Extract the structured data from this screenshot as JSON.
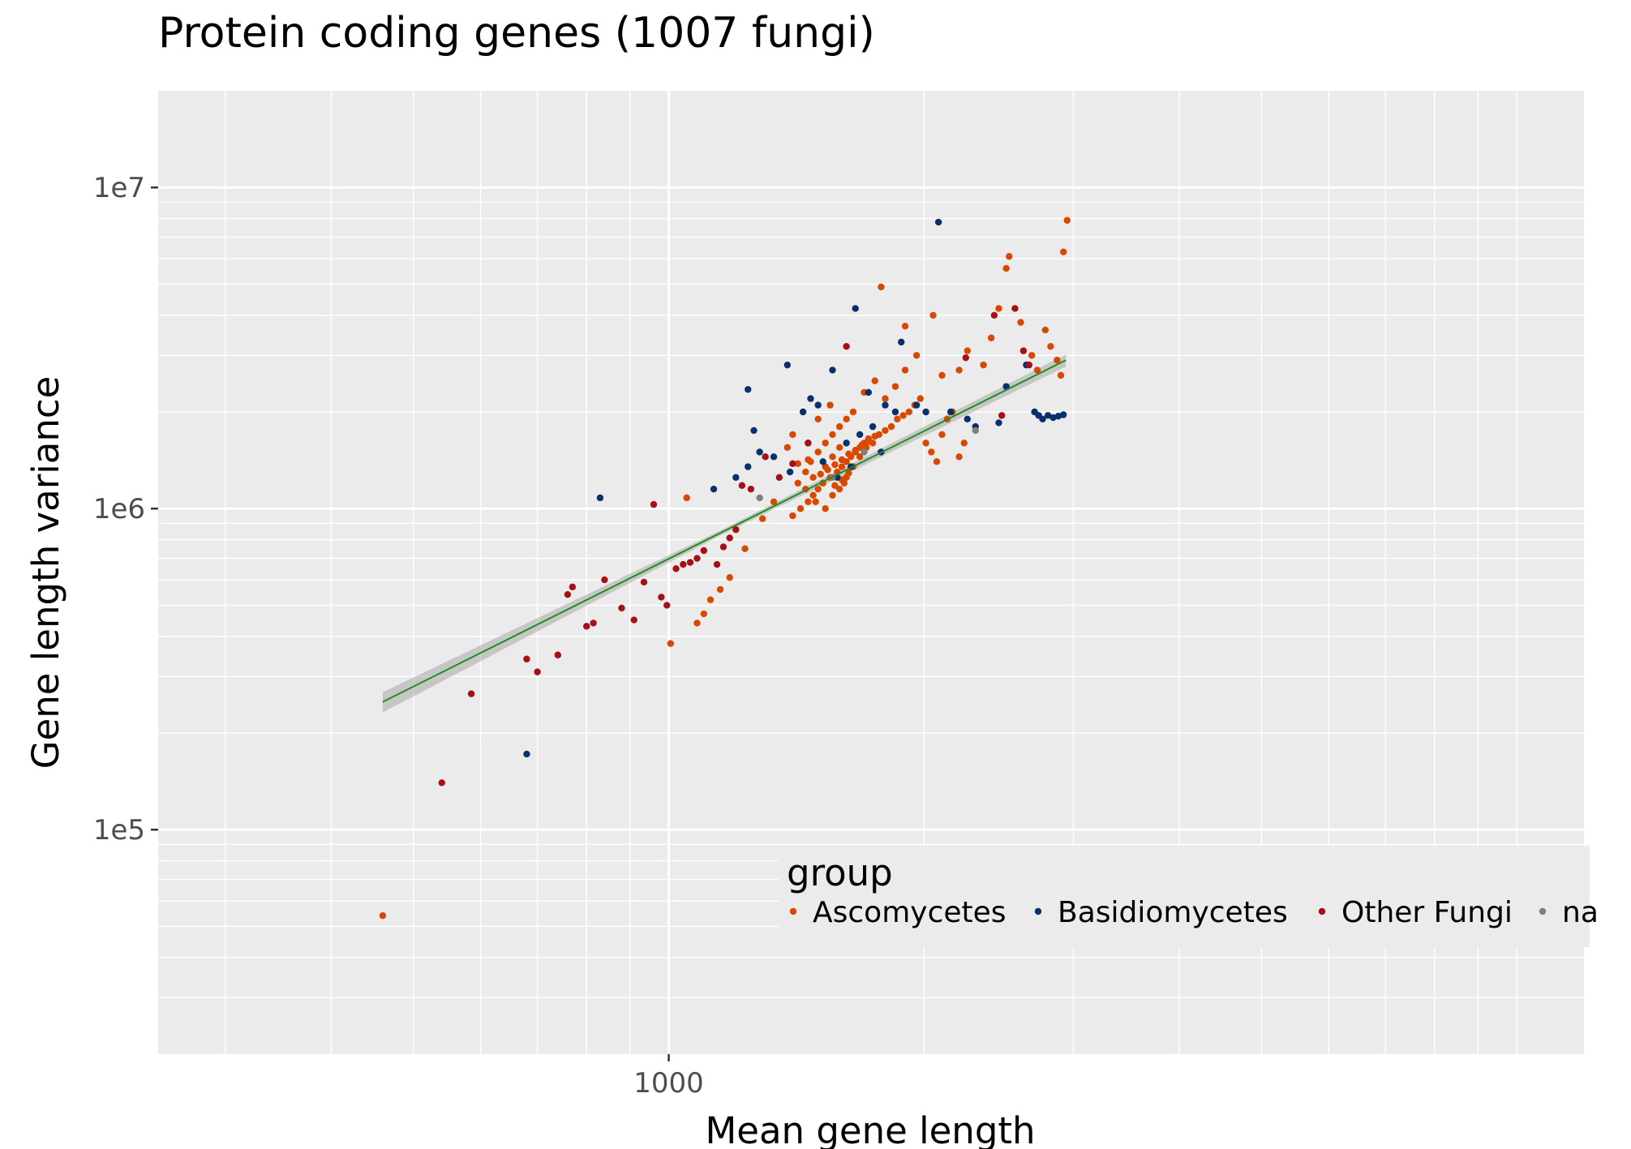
{
  "chart_data": {
    "type": "scatter",
    "title": "Protein coding genes (1007 fungi)",
    "xlabel": "Mean gene length",
    "ylabel": "Gene length variance",
    "x_scale": "log",
    "y_scale": "log",
    "xlim": [
      250,
      12000
    ],
    "ylim": [
      20000,
      20000000
    ],
    "x_ticks": [
      {
        "value": 1000,
        "label": "1000"
      }
    ],
    "y_ticks": [
      {
        "value": 10000000,
        "label": "1e7"
      },
      {
        "value": 1000000,
        "label": "1e6"
      },
      {
        "value": 100000,
        "label": "1e5"
      }
    ],
    "grid": true,
    "legend": {
      "title": "group",
      "position": "bottom-center-inside"
    },
    "trend_line": {
      "x_start": 460,
      "y_start": 250000,
      "x_end": 2940,
      "y_end": 2900000,
      "color": "#228b22",
      "ci_band": true
    },
    "series": [
      {
        "name": "Ascomycetes",
        "color": "#d94801",
        "points": [
          [
            460,
            54000
          ],
          [
            1005,
            380000
          ],
          [
            1050,
            1080000
          ],
          [
            1080,
            440000
          ],
          [
            1100,
            470000
          ],
          [
            1120,
            520000
          ],
          [
            1150,
            560000
          ],
          [
            1180,
            610000
          ],
          [
            1230,
            750000
          ],
          [
            1290,
            930000
          ],
          [
            1330,
            1050000
          ],
          [
            1400,
            950000
          ],
          [
            1430,
            1000000
          ],
          [
            1460,
            1050000
          ],
          [
            1480,
            1100000
          ],
          [
            1500,
            1150000
          ],
          [
            1520,
            1200000
          ],
          [
            1550,
            1250000
          ],
          [
            1580,
            1300000
          ],
          [
            1600,
            1350000
          ],
          [
            1620,
            1400000
          ],
          [
            1640,
            1450000
          ],
          [
            1660,
            1500000
          ],
          [
            1680,
            1550000
          ],
          [
            1700,
            1600000
          ],
          [
            1720,
            1650000
          ],
          [
            1420,
            1200000
          ],
          [
            1450,
            1300000
          ],
          [
            1470,
            1400000
          ],
          [
            1500,
            1500000
          ],
          [
            1530,
            1600000
          ],
          [
            1560,
            1700000
          ],
          [
            1590,
            1800000
          ],
          [
            1620,
            1900000
          ],
          [
            1650,
            2000000
          ],
          [
            1450,
            1150000
          ],
          [
            1490,
            1050000
          ],
          [
            1530,
            1000000
          ],
          [
            1560,
            1100000
          ],
          [
            1590,
            1150000
          ],
          [
            1610,
            1200000
          ],
          [
            1530,
            1350000
          ],
          [
            1560,
            1450000
          ],
          [
            1590,
            1550000
          ],
          [
            1620,
            1250000
          ],
          [
            1650,
            1350000
          ],
          [
            1680,
            1450000
          ],
          [
            1710,
            1550000
          ],
          [
            1740,
            1600000
          ],
          [
            1770,
            1700000
          ],
          [
            1800,
            1750000
          ],
          [
            1830,
            1800000
          ],
          [
            1860,
            1900000
          ],
          [
            1890,
            1950000
          ],
          [
            1920,
            2000000
          ],
          [
            1950,
            2100000
          ],
          [
            1980,
            2200000
          ],
          [
            2010,
            1600000
          ],
          [
            2040,
            1500000
          ],
          [
            2070,
            1400000
          ],
          [
            2100,
            1700000
          ],
          [
            2130,
            1900000
          ],
          [
            2160,
            2000000
          ],
          [
            2200,
            1450000
          ],
          [
            2230,
            1600000
          ],
          [
            1700,
            2300000
          ],
          [
            1750,
            2500000
          ],
          [
            1800,
            2200000
          ],
          [
            1850,
            2400000
          ],
          [
            1900,
            2700000
          ],
          [
            1960,
            3000000
          ],
          [
            2100,
            2600000
          ],
          [
            2200,
            2700000
          ],
          [
            2250,
            3100000
          ],
          [
            2350,
            2800000
          ],
          [
            2400,
            3400000
          ],
          [
            2450,
            4200000
          ],
          [
            2500,
            5600000
          ],
          [
            2520,
            6100000
          ],
          [
            2600,
            3800000
          ],
          [
            2680,
            3000000
          ],
          [
            2720,
            2700000
          ],
          [
            2780,
            3600000
          ],
          [
            2820,
            3200000
          ],
          [
            2870,
            2900000
          ],
          [
            2900,
            2600000
          ],
          [
            2920,
            6300000
          ],
          [
            2950,
            7900000
          ],
          [
            1780,
            4900000
          ],
          [
            1900,
            3700000
          ],
          [
            2050,
            4000000
          ],
          [
            1480,
            1250000
          ],
          [
            1510,
            1280000
          ],
          [
            1540,
            1320000
          ],
          [
            1570,
            1370000
          ],
          [
            1600,
            1420000
          ],
          [
            1630,
            1480000
          ],
          [
            1660,
            1520000
          ],
          [
            1690,
            1580000
          ],
          [
            1720,
            1620000
          ],
          [
            1750,
            1680000
          ],
          [
            1570,
            1180000
          ],
          [
            1600,
            1230000
          ],
          [
            1630,
            1290000
          ],
          [
            1420,
            1380000
          ],
          [
            1460,
            1420000
          ],
          [
            1380,
            1550000
          ],
          [
            1400,
            1700000
          ],
          [
            1500,
            1900000
          ],
          [
            1550,
            2100000
          ]
        ]
      },
      {
        "name": "Basidiomycetes",
        "color": "#08306b",
        "points": [
          [
            830,
            1080000
          ],
          [
            680,
            172000
          ],
          [
            1130,
            1150000
          ],
          [
            1200,
            1250000
          ],
          [
            1240,
            1350000
          ],
          [
            1280,
            1500000
          ],
          [
            1260,
            1750000
          ],
          [
            1240,
            2350000
          ],
          [
            1380,
            2800000
          ],
          [
            1440,
            2000000
          ],
          [
            1470,
            2200000
          ],
          [
            1500,
            2100000
          ],
          [
            1560,
            2700000
          ],
          [
            1660,
            4200000
          ],
          [
            1720,
            2300000
          ],
          [
            1800,
            2100000
          ],
          [
            1850,
            2000000
          ],
          [
            1880,
            3300000
          ],
          [
            1960,
            2100000
          ],
          [
            2010,
            2000000
          ],
          [
            2080,
            7800000
          ],
          [
            2150,
            2000000
          ],
          [
            2250,
            1900000
          ],
          [
            2300,
            1800000
          ],
          [
            2450,
            1850000
          ],
          [
            2500,
            2400000
          ],
          [
            2640,
            2800000
          ],
          [
            2700,
            2000000
          ],
          [
            2730,
            1950000
          ],
          [
            2760,
            1900000
          ],
          [
            2800,
            1950000
          ],
          [
            2840,
            1920000
          ],
          [
            2880,
            1940000
          ],
          [
            2920,
            1960000
          ],
          [
            1520,
            1400000
          ],
          [
            1620,
            1600000
          ],
          [
            1680,
            1700000
          ],
          [
            1740,
            1800000
          ],
          [
            1780,
            1500000
          ],
          [
            1580,
            1250000
          ],
          [
            1640,
            1350000
          ],
          [
            1460,
            1600000
          ],
          [
            1390,
            1300000
          ],
          [
            1330,
            1450000
          ]
        ]
      },
      {
        "name": "Other Fungi",
        "color": "#a50f15",
        "points": [
          [
            540,
            140000
          ],
          [
            585,
            265000
          ],
          [
            680,
            340000
          ],
          [
            700,
            310000
          ],
          [
            740,
            350000
          ],
          [
            760,
            540000
          ],
          [
            770,
            570000
          ],
          [
            800,
            430000
          ],
          [
            815,
            440000
          ],
          [
            840,
            600000
          ],
          [
            880,
            490000
          ],
          [
            910,
            450000
          ],
          [
            935,
            590000
          ],
          [
            960,
            1030000
          ],
          [
            980,
            530000
          ],
          [
            995,
            500000
          ],
          [
            1020,
            650000
          ],
          [
            1040,
            670000
          ],
          [
            1060,
            680000
          ],
          [
            1080,
            700000
          ],
          [
            1100,
            740000
          ],
          [
            1140,
            670000
          ],
          [
            1160,
            760000
          ],
          [
            1180,
            810000
          ],
          [
            1200,
            860000
          ],
          [
            1220,
            1180000
          ],
          [
            1250,
            1150000
          ],
          [
            1300,
            1450000
          ],
          [
            1350,
            1250000
          ],
          [
            1400,
            1380000
          ],
          [
            1460,
            1600000
          ],
          [
            1620,
            3200000
          ],
          [
            2240,
            2950000
          ],
          [
            2420,
            4000000
          ],
          [
            2560,
            4200000
          ],
          [
            2620,
            3100000
          ],
          [
            2660,
            2800000
          ],
          [
            2470,
            1950000
          ]
        ]
      },
      {
        "name": "na",
        "color": "#7f7f7f",
        "points": [
          [
            1280,
            1080000
          ],
          [
            1560,
            1250000
          ],
          [
            1700,
            1500000
          ],
          [
            2300,
            1750000
          ]
        ]
      }
    ]
  }
}
